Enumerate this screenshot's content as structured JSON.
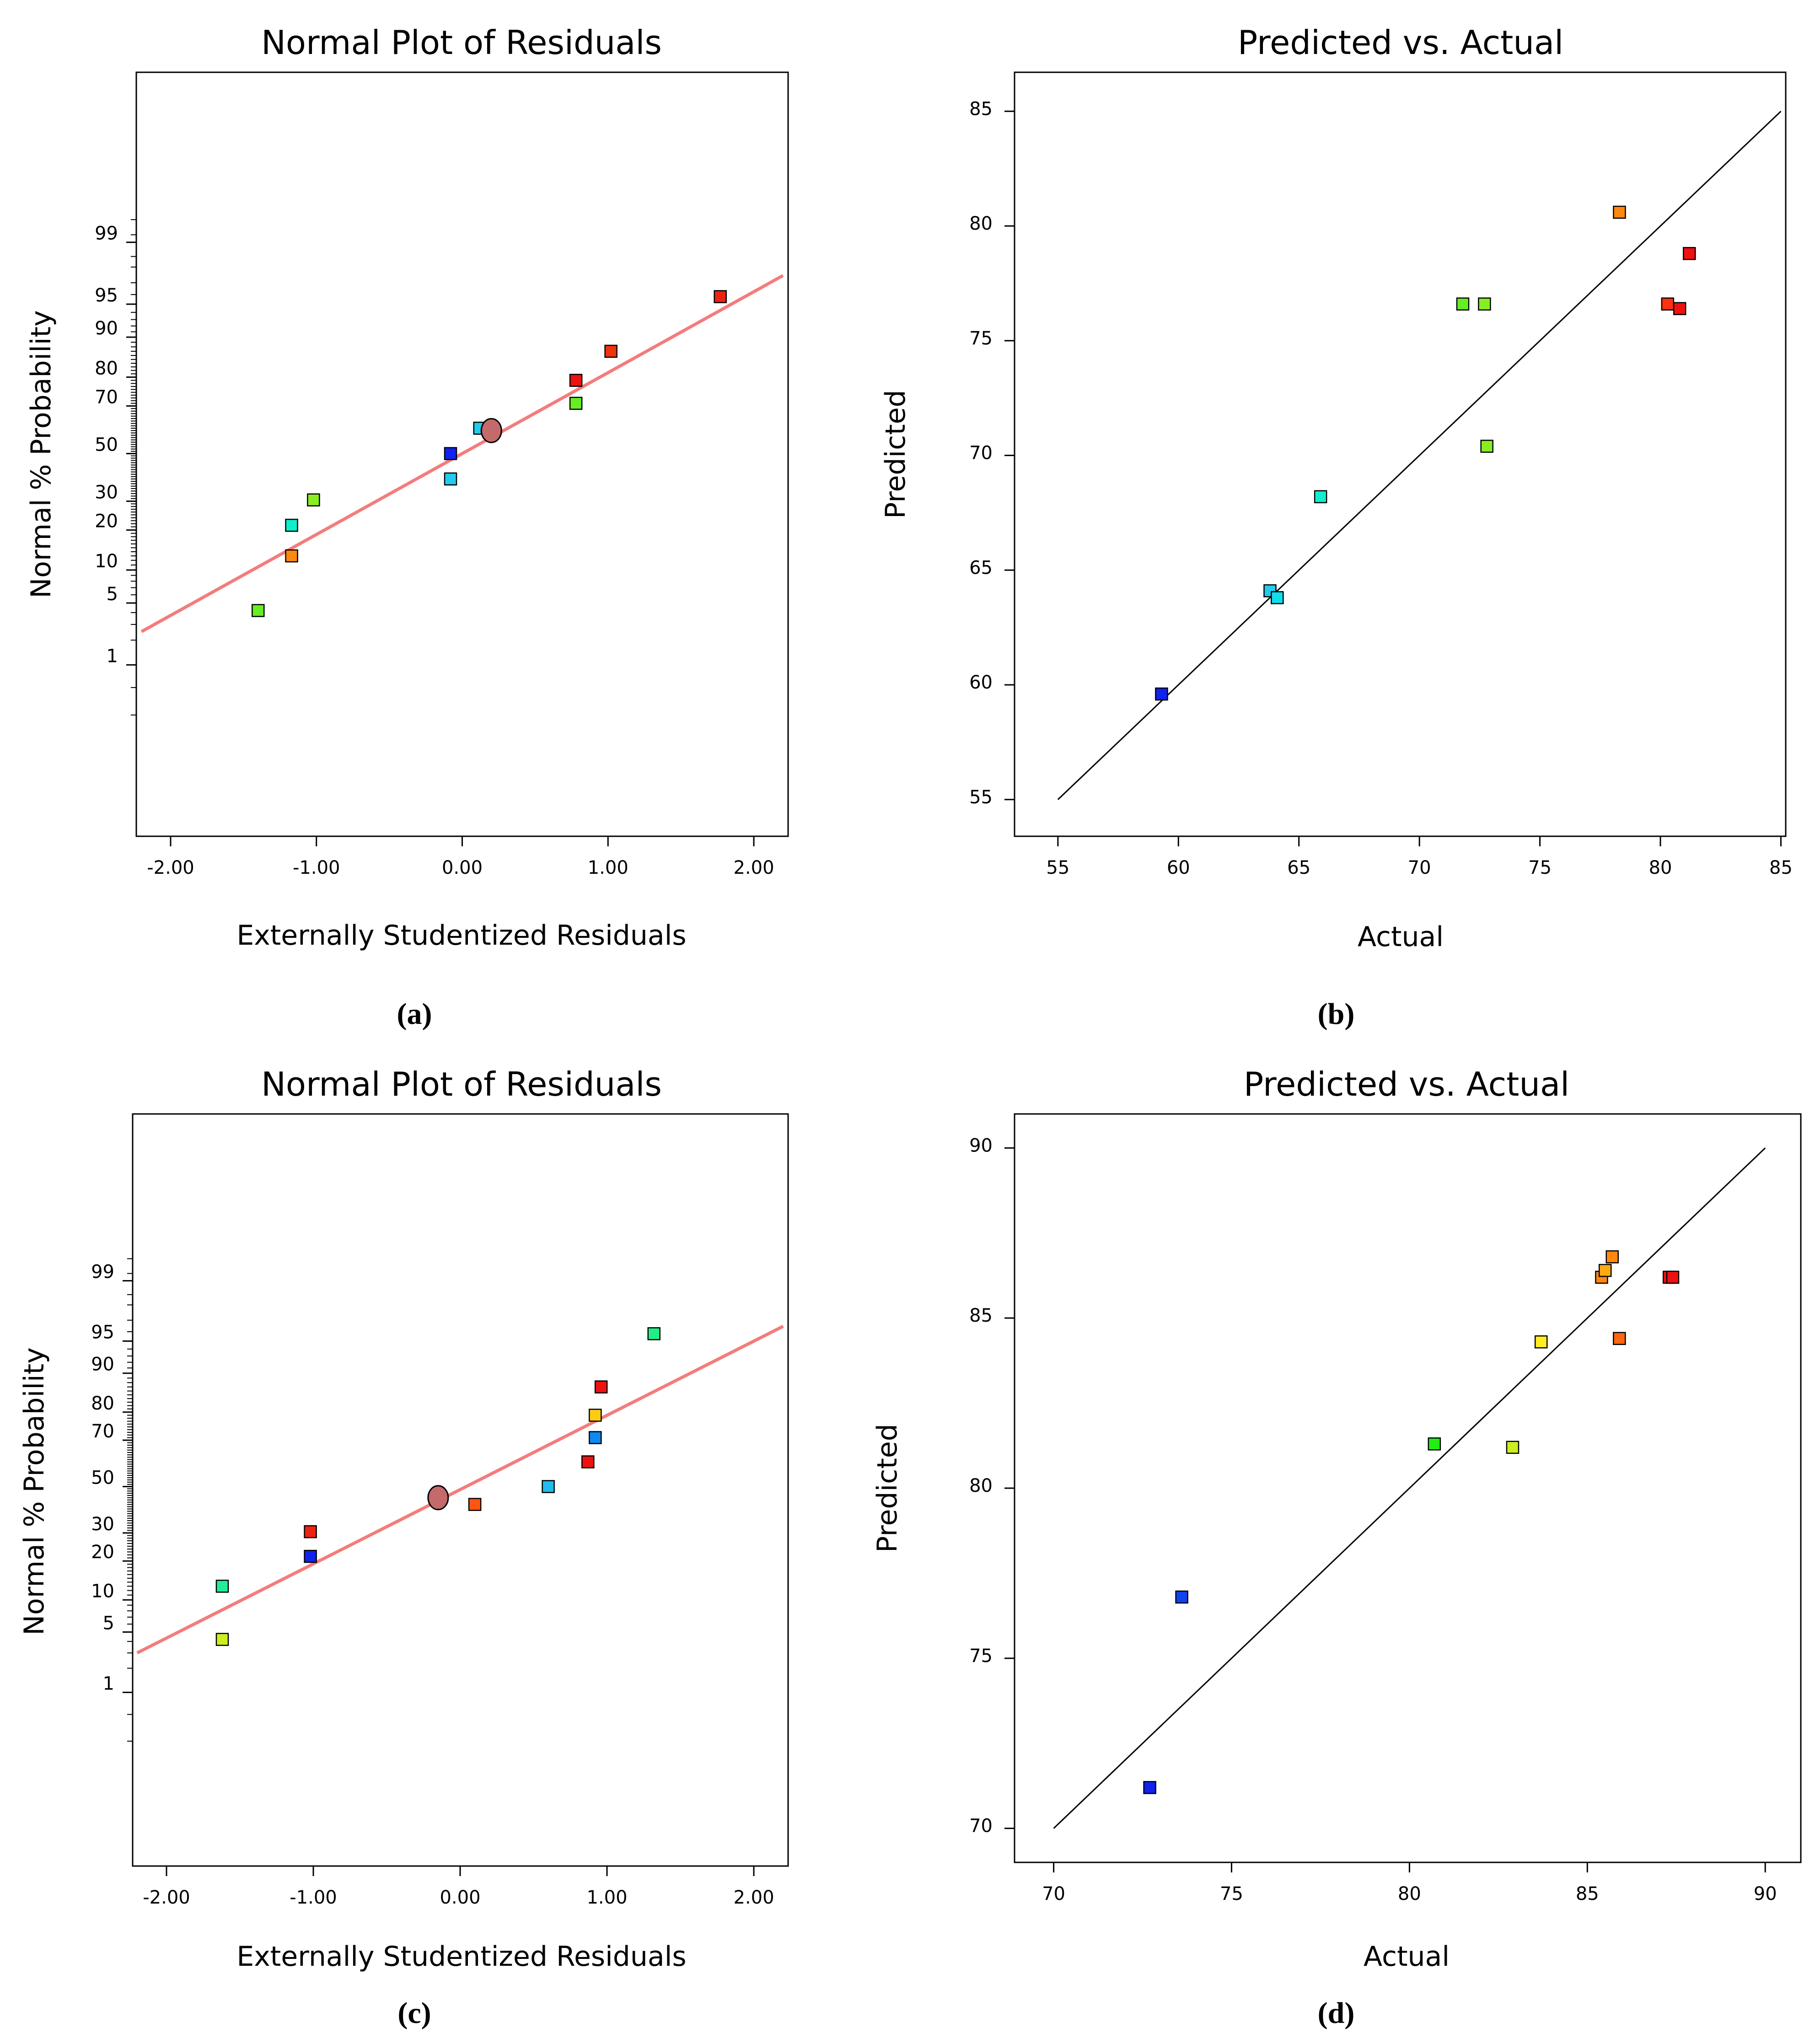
{
  "chart_data": [
    {
      "id": "a",
      "type": "scatter",
      "caption": "(a)",
      "title": "Normal Plot of Residuals",
      "xlabel": "Externally Studentized Residuals",
      "ylabel": "Normal % Probability",
      "xlim": [
        -2.2,
        2.2
      ],
      "x_ticks": [
        -2,
        -1,
        0,
        1,
        2
      ],
      "x_tick_labels": [
        "-2.00",
        "-1.00",
        "0.00",
        "1.00",
        "2.00"
      ],
      "y_ticks": [
        1,
        5,
        10,
        20,
        30,
        50,
        70,
        80,
        90,
        95,
        99
      ],
      "y_tick_labels": [
        "1",
        "5",
        "10",
        "20",
        "30",
        "50",
        "70",
        "80",
        "90",
        "95",
        "99"
      ],
      "fit_line": {
        "x0": -2.2,
        "p0": 2.5,
        "x1": 2.2,
        "p1": 97.5
      },
      "marker": {
        "x": 0.2,
        "p": 60
      },
      "points": [
        {
          "x": -1.4,
          "p": 4.2,
          "color": "#66ee22"
        },
        {
          "x": -1.17,
          "p": 13,
          "color": "#ff8811"
        },
        {
          "x": -1.17,
          "p": 21.5,
          "color": "#11eecc"
        },
        {
          "x": -1.02,
          "p": 30.5,
          "color": "#88ee22"
        },
        {
          "x": -0.08,
          "p": 39,
          "color": "#22ccee"
        },
        {
          "x": -0.08,
          "p": 50,
          "color": "#1122ee"
        },
        {
          "x": 0.12,
          "p": 61,
          "color": "#22ccee"
        },
        {
          "x": 0.78,
          "p": 71,
          "color": "#66ee22"
        },
        {
          "x": 0.78,
          "p": 79,
          "color": "#ee1111"
        },
        {
          "x": 1.02,
          "p": 87,
          "color": "#ee3311"
        },
        {
          "x": 1.77,
          "p": 95.8,
          "color": "#ee2211"
        }
      ]
    },
    {
      "id": "b",
      "type": "scatter",
      "caption": "(b)",
      "title": "Predicted vs. Actual",
      "xlabel": "Actual",
      "ylabel": "Predicted",
      "xlim": [
        53.2,
        85.2
      ],
      "ylim": [
        53.4,
        86.7
      ],
      "x_ticks": [
        55,
        60,
        65,
        70,
        75,
        80,
        85
      ],
      "y_ticks": [
        55,
        60,
        65,
        70,
        75,
        80,
        85
      ],
      "ref_line": [
        [
          55,
          55
        ],
        [
          85,
          85
        ]
      ],
      "points": [
        {
          "x": 59.3,
          "y": 59.6,
          "color": "#1122ee"
        },
        {
          "x": 63.8,
          "y": 64.1,
          "color": "#22ccee"
        },
        {
          "x": 64.1,
          "y": 63.8,
          "color": "#11ddee"
        },
        {
          "x": 65.9,
          "y": 68.2,
          "color": "#11eecc"
        },
        {
          "x": 71.8,
          "y": 76.6,
          "color": "#66ee22"
        },
        {
          "x": 72.7,
          "y": 76.6,
          "color": "#88ee22"
        },
        {
          "x": 72.8,
          "y": 70.4,
          "color": "#88ee22"
        },
        {
          "x": 78.3,
          "y": 80.6,
          "color": "#ff8811"
        },
        {
          "x": 80.3,
          "y": 76.6,
          "color": "#ff3311"
        },
        {
          "x": 80.8,
          "y": 76.4,
          "color": "#ee1111"
        },
        {
          "x": 81.2,
          "y": 78.8,
          "color": "#ee1111"
        }
      ]
    },
    {
      "id": "c",
      "type": "scatter",
      "caption": "(c)",
      "title": "Normal Plot of Residuals",
      "xlabel": "Externally Studentized Residuals",
      "ylabel": "Normal % Probability",
      "xlim": [
        -2.2,
        2.2
      ],
      "x_ticks": [
        -2,
        -1,
        0,
        1,
        2
      ],
      "x_tick_labels": [
        "-2.00",
        "-1.00",
        "0.00",
        "1.00",
        "2.00"
      ],
      "y_ticks": [
        1,
        5,
        10,
        20,
        30,
        50,
        70,
        80,
        90,
        95,
        99
      ],
      "y_tick_labels": [
        "1",
        "5",
        "10",
        "20",
        "30",
        "50",
        "70",
        "80",
        "90",
        "95",
        "99"
      ],
      "fit_line": {
        "x0": -2.2,
        "p0": 3.0,
        "x1": 2.2,
        "p1": 96.5
      },
      "marker": {
        "x": -0.15,
        "p": 45
      },
      "points": [
        {
          "x": -1.62,
          "p": 4.2,
          "color": "#ccee22"
        },
        {
          "x": -1.62,
          "p": 13,
          "color": "#22ee99"
        },
        {
          "x": -1.02,
          "p": 21.5,
          "color": "#1122ee"
        },
        {
          "x": -1.02,
          "p": 30.5,
          "color": "#ee2211"
        },
        {
          "x": 0.1,
          "p": 42,
          "color": "#ff5511"
        },
        {
          "x": 0.6,
          "p": 50,
          "color": "#22bbee"
        },
        {
          "x": 0.87,
          "p": 61,
          "color": "#ee1111"
        },
        {
          "x": 0.92,
          "p": 71,
          "color": "#1188ee"
        },
        {
          "x": 0.92,
          "p": 79,
          "color": "#ffcc11"
        },
        {
          "x": 0.96,
          "p": 87,
          "color": "#ee1111"
        },
        {
          "x": 1.32,
          "p": 95.8,
          "color": "#22ee88"
        }
      ]
    },
    {
      "id": "d",
      "type": "scatter",
      "caption": "(d)",
      "title": "Predicted vs. Actual",
      "xlabel": "Actual",
      "ylabel": "Predicted",
      "xlim": [
        68.9,
        91.0
      ],
      "ylim": [
        69.0,
        91.0
      ],
      "x_ticks": [
        70,
        75,
        80,
        85,
        90
      ],
      "y_ticks": [
        70,
        75,
        80,
        85,
        90
      ],
      "ref_line": [
        [
          70,
          70
        ],
        [
          90,
          90
        ]
      ],
      "points": [
        {
          "x": 72.7,
          "y": 71.2,
          "color": "#1122ee"
        },
        {
          "x": 73.6,
          "y": 76.8,
          "color": "#1144ee"
        },
        {
          "x": 80.7,
          "y": 81.3,
          "color": "#22ee11"
        },
        {
          "x": 82.9,
          "y": 81.2,
          "color": "#ccee22"
        },
        {
          "x": 83.7,
          "y": 84.3,
          "color": "#ffee22"
        },
        {
          "x": 85.4,
          "y": 86.2,
          "color": "#ff8811"
        },
        {
          "x": 85.5,
          "y": 86.4,
          "color": "#ffaa11"
        },
        {
          "x": 85.7,
          "y": 86.8,
          "color": "#ff8811"
        },
        {
          "x": 85.9,
          "y": 84.4,
          "color": "#ff6611"
        },
        {
          "x": 87.3,
          "y": 86.2,
          "color": "#ee1111"
        },
        {
          "x": 87.4,
          "y": 86.2,
          "color": "#ee1111"
        }
      ]
    }
  ]
}
